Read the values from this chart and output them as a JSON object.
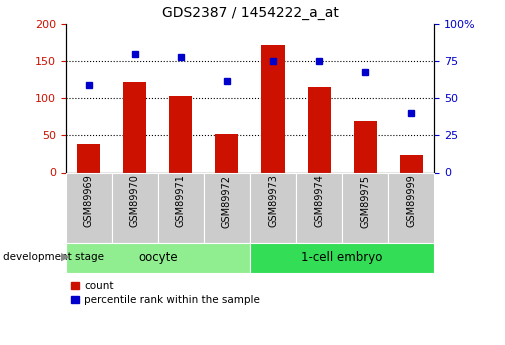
{
  "title": "GDS2387 / 1454222_a_at",
  "samples": [
    "GSM89969",
    "GSM89970",
    "GSM89971",
    "GSM89972",
    "GSM89973",
    "GSM89974",
    "GSM89975",
    "GSM89999"
  ],
  "counts": [
    38,
    122,
    103,
    52,
    172,
    115,
    70,
    23
  ],
  "percentiles": [
    59,
    80,
    78,
    62,
    75,
    75,
    68,
    40
  ],
  "groups": [
    {
      "label": "oocyte",
      "start": 0,
      "end": 3,
      "color": "#90EE90"
    },
    {
      "label": "1-cell embryo",
      "start": 4,
      "end": 7,
      "color": "#33DD55"
    }
  ],
  "bar_color": "#CC1100",
  "marker_color": "#0000CC",
  "left_ylim": [
    0,
    200
  ],
  "right_ylim": [
    0,
    100
  ],
  "left_yticks": [
    0,
    50,
    100,
    150,
    200
  ],
  "right_ytick_vals": [
    0,
    25,
    50,
    75,
    100
  ],
  "right_ytick_labels": [
    "0",
    "25",
    "50",
    "75",
    "100%"
  ],
  "grid_values": [
    50,
    100,
    150
  ],
  "legend_count_label": "count",
  "legend_percentile_label": "percentile rank within the sample",
  "group_label": "development stage"
}
